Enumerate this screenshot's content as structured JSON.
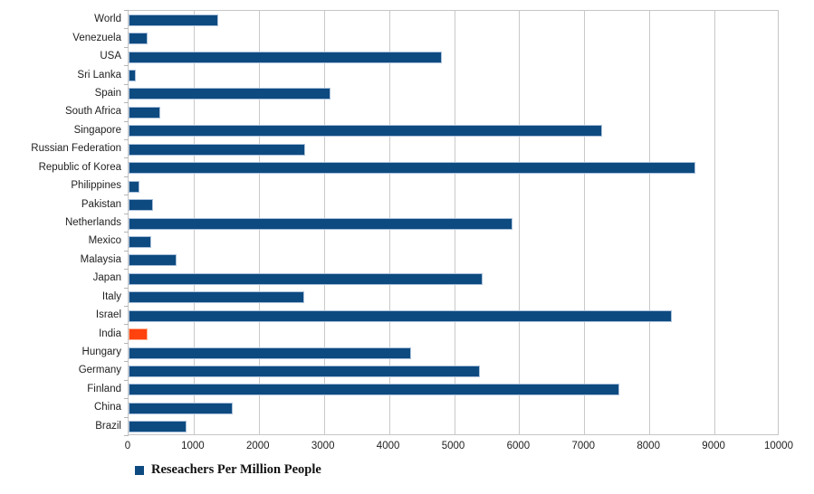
{
  "chart_data": {
    "type": "bar",
    "orientation": "horizontal",
    "title": "",
    "xlabel": "",
    "ylabel": "",
    "xlim": [
      0,
      10000
    ],
    "x_ticks": [
      0,
      1000,
      2000,
      3000,
      4000,
      5000,
      6000,
      7000,
      8000,
      9000,
      10000
    ],
    "grid": true,
    "legend_position": "bottom-left",
    "categories": [
      "World",
      "Venezuela",
      "USA",
      "Sri Lanka",
      "Spain",
      "South Africa",
      "Singapore",
      "Russian Federation",
      "Republic of Korea",
      "Philippines",
      "Pakistan",
      "Netherlands",
      "Mexico",
      "Malaysia",
      "Japan",
      "Italy",
      "Israel",
      "India",
      "Hungary",
      "Germany",
      "Finland",
      "China",
      "Brazil"
    ],
    "values": [
      1380,
      290,
      4815,
      110,
      3100,
      490,
      7270,
      2715,
      8700,
      170,
      380,
      5900,
      350,
      735,
      5440,
      2695,
      8340,
      290,
      4345,
      5395,
      7535,
      1595,
      895
    ],
    "series": [
      {
        "name": "Reseachers Per Million People",
        "values": [
          1380,
          290,
          4815,
          110,
          3100,
          490,
          7270,
          2715,
          8700,
          170,
          380,
          5900,
          350,
          735,
          5440,
          2695,
          8340,
          290,
          4345,
          5395,
          7535,
          1595,
          895
        ]
      }
    ],
    "highlight_category": "India",
    "colors": {
      "bar": "#0d4a80",
      "bar_border": "#a9c0da",
      "highlight": "#ff420e",
      "highlight_border": "#ffb396",
      "grid": "#c9c9c9",
      "axis": "#b5b5b5",
      "text": "#1f1f1f"
    }
  },
  "legend": {
    "label": "Reseachers Per Million People",
    "swatch_color": "#0d4a80"
  }
}
